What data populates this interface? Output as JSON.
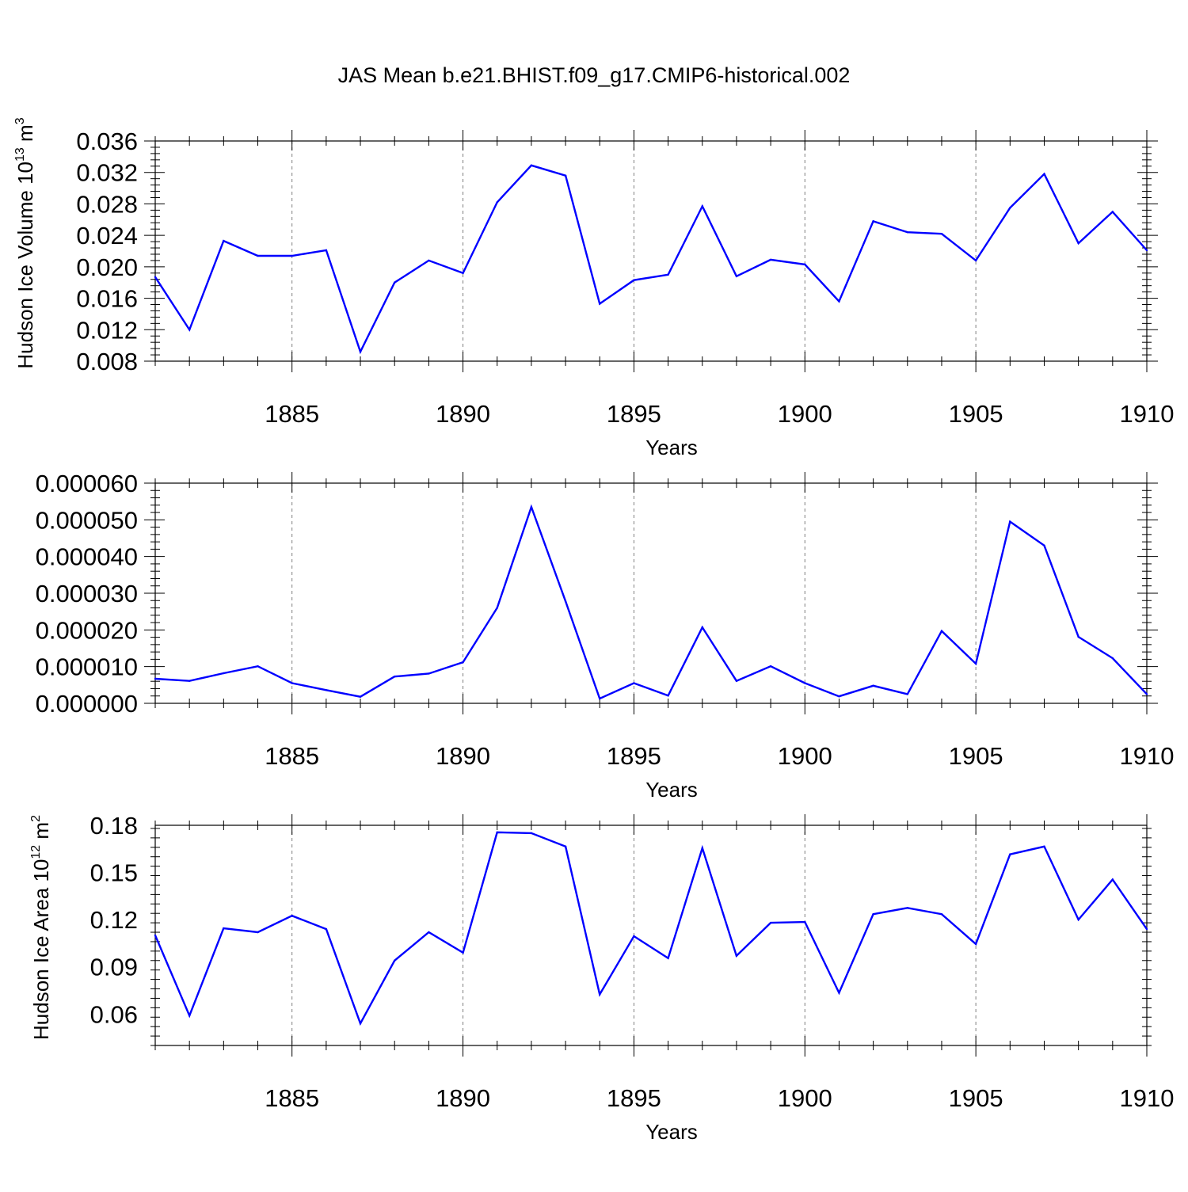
{
  "figure": {
    "title": "JAS Mean b.e21.BHIST.f09_g17.CMIP6-historical.002"
  },
  "colors": {
    "series": "#0000ff",
    "axis": "#000000",
    "grid": "#808080"
  },
  "chart_data": [
    {
      "type": "line",
      "title": "JAS Mean b.e21.BHIST.f09_g17.CMIP6-historical.002",
      "xlabel": "Years",
      "ylabel_base": "Hudson Ice Volume 10",
      "ylabel_exp": "13",
      "ylabel_unit": " m",
      "ylabel_unit_exp": "3",
      "xlim": [
        1881,
        1910
      ],
      "ylim": [
        0.008,
        0.036
      ],
      "xticks": [
        1885,
        1890,
        1895,
        1900,
        1905,
        1910
      ],
      "xtick_labels": [
        "1885",
        "1890",
        "1895",
        "1900",
        "1905",
        "1910"
      ],
      "yticks": [
        0.008,
        0.012,
        0.016,
        0.02,
        0.024,
        0.028,
        0.032,
        0.036
      ],
      "ytick_labels": [
        "0.008",
        "0.012",
        "0.016",
        "0.020",
        "0.024",
        "0.028",
        "0.032",
        "0.036"
      ],
      "x": [
        1881,
        1882,
        1883,
        1884,
        1885,
        1886,
        1887,
        1888,
        1889,
        1890,
        1891,
        1892,
        1893,
        1894,
        1895,
        1896,
        1897,
        1898,
        1899,
        1900,
        1901,
        1902,
        1903,
        1904,
        1905,
        1906,
        1907,
        1908,
        1909,
        1910
      ],
      "values": [
        0.0187,
        0.012,
        0.0233,
        0.0214,
        0.0214,
        0.0221,
        0.0092,
        0.018,
        0.0208,
        0.0192,
        0.0282,
        0.0329,
        0.0316,
        0.0153,
        0.0183,
        0.019,
        0.0277,
        0.0188,
        0.0209,
        0.0203,
        0.0156,
        0.0258,
        0.0244,
        0.0242,
        0.0208,
        0.0275,
        0.0318,
        0.023,
        0.027,
        0.0221
      ]
    },
    {
      "type": "line",
      "xlabel": "Years",
      "xlim": [
        1881,
        1910
      ],
      "ylim": [
        0.0,
        6e-05
      ],
      "xticks": [
        1885,
        1890,
        1895,
        1900,
        1905,
        1910
      ],
      "xtick_labels": [
        "1885",
        "1890",
        "1895",
        "1900",
        "1905",
        "1910"
      ],
      "yticks": [
        0.0,
        1e-05,
        2e-05,
        3e-05,
        4e-05,
        5e-05,
        6e-05
      ],
      "ytick_labels": [
        "0.000000",
        "0.000010",
        "0.000020",
        "0.000030",
        "0.000040",
        "0.000050",
        "0.000060"
      ],
      "x": [
        1881,
        1882,
        1883,
        1884,
        1885,
        1886,
        1887,
        1888,
        1889,
        1890,
        1891,
        1892,
        1893,
        1894,
        1895,
        1896,
        1897,
        1898,
        1899,
        1900,
        1901,
        1902,
        1903,
        1904,
        1905,
        1906,
        1907,
        1908,
        1909,
        1910
      ],
      "values": [
        6.7e-06,
        6.1e-06,
        8.2e-06,
        1.01e-05,
        5.5e-06,
        3.6e-06,
        1.8e-06,
        7.3e-06,
        8.1e-06,
        1.12e-05,
        2.6e-05,
        5.35e-05,
        2.78e-05,
        1.3e-06,
        5.5e-06,
        2.1e-06,
        2.07e-05,
        6.1e-06,
        1.01e-05,
        5.5e-06,
        1.9e-06,
        4.8e-06,
        2.5e-06,
        1.97e-05,
        1.08e-05,
        4.95e-05,
        4.3e-05,
        1.81e-05,
        1.23e-05,
        2.5e-06
      ]
    },
    {
      "type": "line",
      "xlabel": "Years",
      "ylabel_base": "Hudson Ice Area 10",
      "ylabel_exp": "12",
      "ylabel_unit": " m",
      "ylabel_unit_exp": "2",
      "xlim": [
        1881,
        1910
      ],
      "ylim": [
        0.04,
        0.18
      ],
      "xticks": [
        1885,
        1890,
        1895,
        1900,
        1905,
        1910
      ],
      "xtick_labels": [
        "1885",
        "1890",
        "1895",
        "1900",
        "1905",
        "1910"
      ],
      "yticks": [
        0.06,
        0.09,
        0.12,
        0.15,
        0.18
      ],
      "ytick_labels": [
        "0.06",
        "0.09",
        "0.12",
        "0.15",
        "0.18"
      ],
      "x": [
        1881,
        1882,
        1883,
        1884,
        1885,
        1886,
        1887,
        1888,
        1889,
        1890,
        1891,
        1892,
        1893,
        1894,
        1895,
        1896,
        1897,
        1898,
        1899,
        1900,
        1901,
        1902,
        1903,
        1904,
        1905,
        1906,
        1907,
        1908,
        1909,
        1910
      ],
      "values": [
        0.11,
        0.059,
        0.1145,
        0.112,
        0.1225,
        0.114,
        0.054,
        0.094,
        0.112,
        0.099,
        0.1755,
        0.175,
        0.1665,
        0.0725,
        0.1095,
        0.0955,
        0.1655,
        0.097,
        0.118,
        0.1185,
        0.0735,
        0.1235,
        0.1275,
        0.1235,
        0.1045,
        0.1615,
        0.1665,
        0.12,
        0.1455,
        0.114
      ]
    }
  ]
}
